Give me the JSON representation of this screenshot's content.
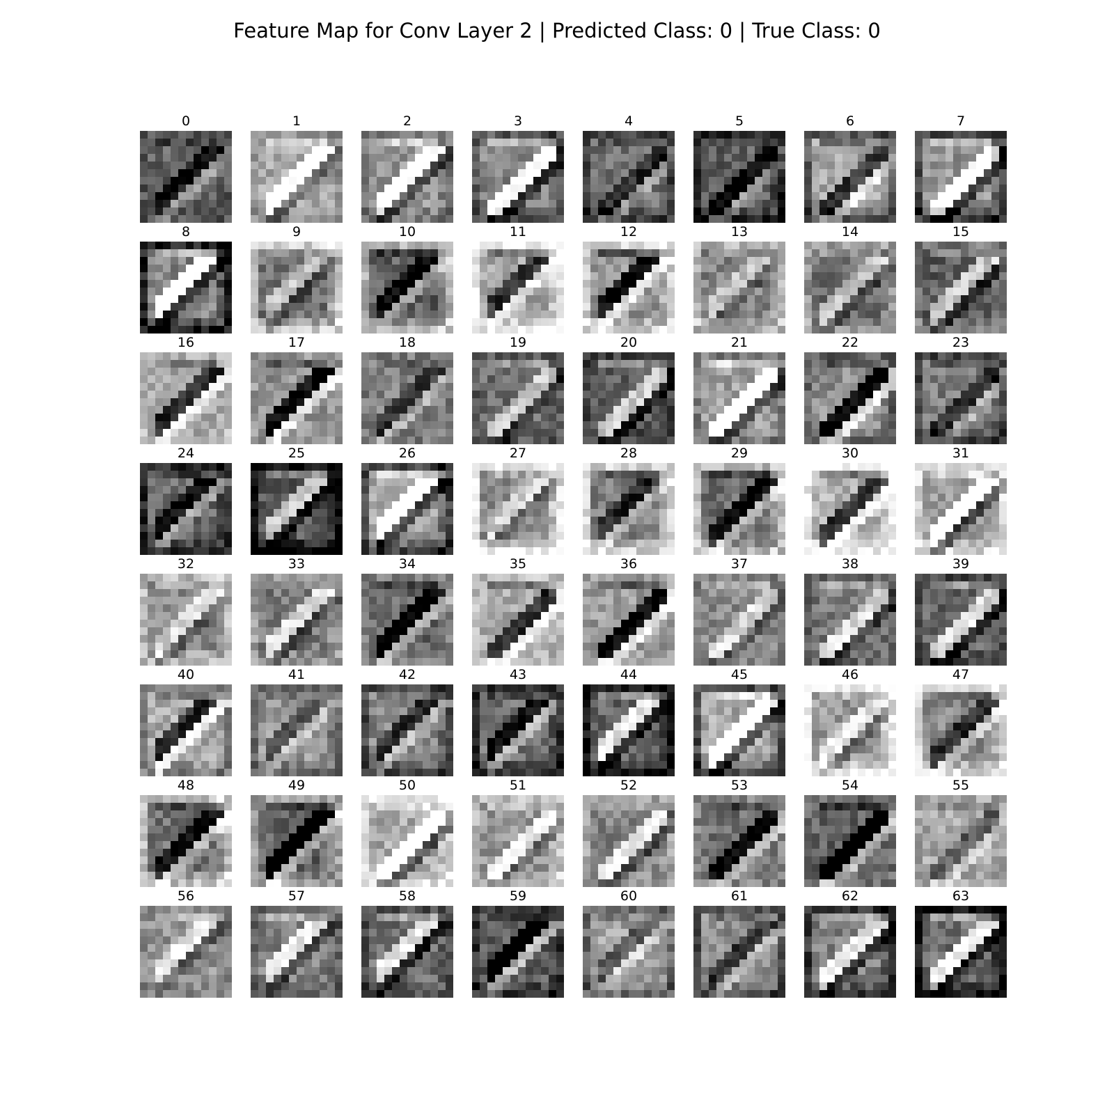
{
  "title": "Feature Map for Conv Layer 2 | Predicted Class: 0 | True Class: 0",
  "grid": {
    "rows": 8,
    "cols": 8
  },
  "maps": [
    {
      "label": "0"
    },
    {
      "label": "1"
    },
    {
      "label": "2"
    },
    {
      "label": "3"
    },
    {
      "label": "4"
    },
    {
      "label": "5"
    },
    {
      "label": "6"
    },
    {
      "label": "7"
    },
    {
      "label": "8"
    },
    {
      "label": "9"
    },
    {
      "label": "10"
    },
    {
      "label": "11"
    },
    {
      "label": "12"
    },
    {
      "label": "13"
    },
    {
      "label": "14"
    },
    {
      "label": "15"
    },
    {
      "label": "16"
    },
    {
      "label": "17"
    },
    {
      "label": "18"
    },
    {
      "label": "19"
    },
    {
      "label": "20"
    },
    {
      "label": "21"
    },
    {
      "label": "22"
    },
    {
      "label": "23"
    },
    {
      "label": "24"
    },
    {
      "label": "25"
    },
    {
      "label": "26"
    },
    {
      "label": "27"
    },
    {
      "label": "28"
    },
    {
      "label": "29"
    },
    {
      "label": "30"
    },
    {
      "label": "31"
    },
    {
      "label": "32"
    },
    {
      "label": "33"
    },
    {
      "label": "34"
    },
    {
      "label": "35"
    },
    {
      "label": "36"
    },
    {
      "label": "37"
    },
    {
      "label": "38"
    },
    {
      "label": "39"
    },
    {
      "label": "40"
    },
    {
      "label": "41"
    },
    {
      "label": "42"
    },
    {
      "label": "43"
    },
    {
      "label": "44"
    },
    {
      "label": "45"
    },
    {
      "label": "46"
    },
    {
      "label": "47"
    },
    {
      "label": "48"
    },
    {
      "label": "49"
    },
    {
      "label": "50"
    },
    {
      "label": "51"
    },
    {
      "label": "52"
    },
    {
      "label": "53"
    },
    {
      "label": "54"
    },
    {
      "label": "55"
    },
    {
      "label": "56"
    },
    {
      "label": "57"
    },
    {
      "label": "58"
    },
    {
      "label": "59"
    },
    {
      "label": "60"
    },
    {
      "label": "61"
    },
    {
      "label": "62"
    },
    {
      "label": "63"
    }
  ],
  "colormap": "gray"
}
